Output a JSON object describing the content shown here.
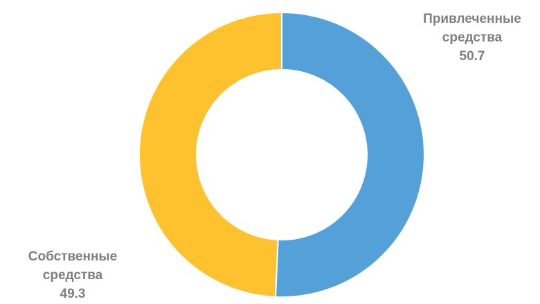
{
  "chart_data": {
    "type": "pie",
    "variant": "donut",
    "title": "",
    "legend": "none",
    "start": "top",
    "direction": "clockwise",
    "slices": [
      {
        "name_lines": [
          "Привлеченные",
          "средства"
        ],
        "value": 50.7,
        "value_label": "50.7",
        "color": "#54a0d8"
      },
      {
        "name_lines": [
          "Собственные",
          "средства"
        ],
        "value": 49.3,
        "value_label": "49.3",
        "color": "#fdc22d"
      }
    ],
    "label_color": "#7f7f7f",
    "separator_color": "#ffffff"
  }
}
